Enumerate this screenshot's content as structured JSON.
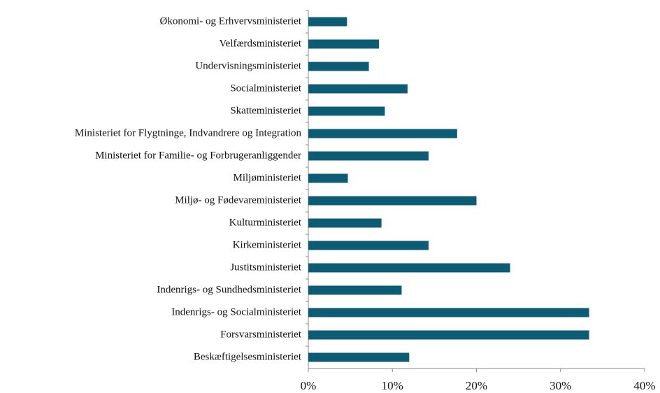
{
  "chart_data": {
    "type": "barh",
    "categories": [
      "Økonomi- og Erhvervsministeriet",
      "Velfærdsministeriet",
      "Undervisningsministeriet",
      "Socialministeriet",
      "Skatteministeriet",
      "Ministeriet for Flygtninge, Indvandrere og Integration",
      "Ministeriet for Familie- og Forbrugeranliggender",
      "Miljøministeriet",
      "Miljø- og Fødevareministeriet",
      "Kulturministeriet",
      "Kirkeministeriet",
      "Justitsministeriet",
      "Indenrigs- og Sundhedsministeriet",
      "Indenrigs- og Socialministeriet",
      "Forsvarsministeriet",
      "Beskæftigelsesministeriet"
    ],
    "values": [
      4.6,
      8.4,
      7.2,
      11.8,
      9.1,
      17.7,
      14.3,
      4.7,
      20.0,
      8.7,
      14.3,
      24.0,
      11.1,
      33.4,
      33.4,
      12.0
    ],
    "color": "#0d5c75",
    "xlim": [
      0,
      40
    ],
    "xticks": [
      {
        "value": 0,
        "label": "0%"
      },
      {
        "value": 10,
        "label": "10%"
      },
      {
        "value": 20,
        "label": "20%"
      },
      {
        "value": 30,
        "label": "30%"
      },
      {
        "value": 40,
        "label": "40%"
      }
    ],
    "grid": false
  }
}
